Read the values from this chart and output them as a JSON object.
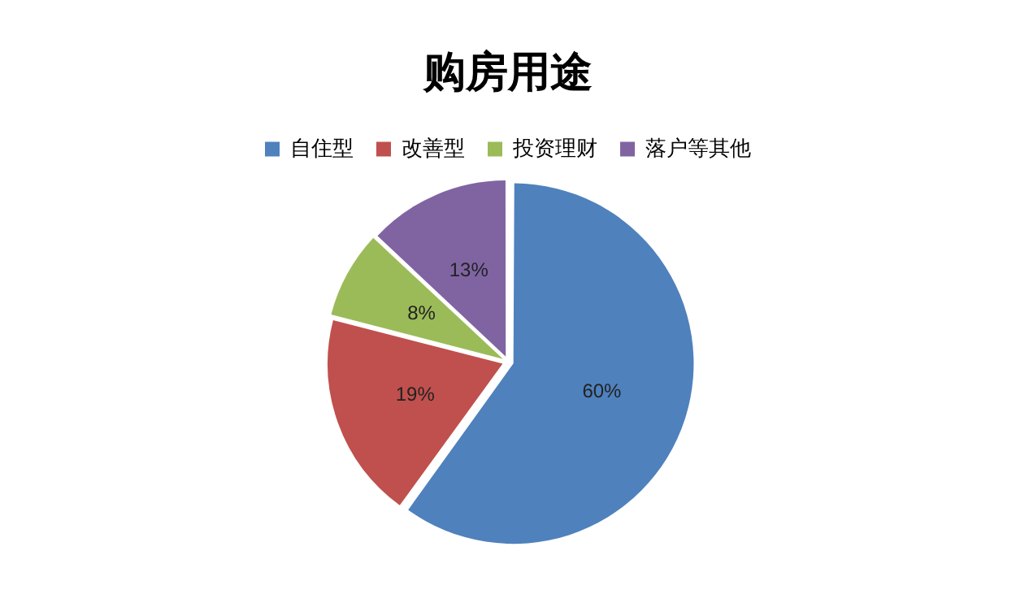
{
  "chart_data": {
    "type": "pie",
    "title": "购房用途",
    "categories": [
      "自住型",
      "改善型",
      "投资理财",
      "落户等其他"
    ],
    "values": [
      60,
      19,
      8,
      13
    ],
    "colors": [
      "#4f81bd",
      "#c0504d",
      "#9bbb59",
      "#8064a2"
    ],
    "value_labels": [
      "60%",
      "19%",
      "8%",
      "13%"
    ],
    "legend": "top"
  }
}
